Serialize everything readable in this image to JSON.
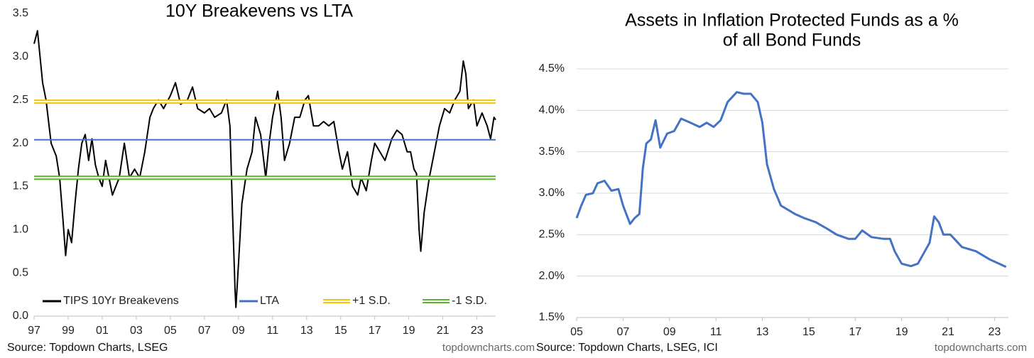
{
  "chart_data": [
    {
      "type": "line",
      "title": "10Y Breakevens vs LTA",
      "xlim": [
        1997,
        2024.1
      ],
      "xticks": [
        {
          "value": 1997,
          "label": "97"
        },
        {
          "value": 1999,
          "label": "99"
        },
        {
          "value": 2001,
          "label": "01"
        },
        {
          "value": 2003,
          "label": "03"
        },
        {
          "value": 2005,
          "label": "05"
        },
        {
          "value": 2007,
          "label": "07"
        },
        {
          "value": 2009,
          "label": "09"
        },
        {
          "value": 2011,
          "label": "11"
        },
        {
          "value": 2013,
          "label": "13"
        },
        {
          "value": 2015,
          "label": "15"
        },
        {
          "value": 2017,
          "label": "17"
        },
        {
          "value": 2019,
          "label": "19"
        },
        {
          "value": 2021,
          "label": "21"
        },
        {
          "value": 2023,
          "label": "23"
        }
      ],
      "ylim": [
        0,
        3.5
      ],
      "yticks": [
        {
          "value": 0,
          "label": "0.0"
        },
        0.5,
        {
          "value": 1,
          "label": "1.0"
        },
        1.5,
        {
          "value": 2,
          "label": "2.0"
        },
        2.5,
        {
          "value": 3,
          "label": "3.0"
        },
        3.5
      ],
      "grid": false,
      "legend": "bottom",
      "series": [
        {
          "name": "TIPS 10Yr Breakevens",
          "color": "#000000",
          "x": [
            1997.0,
            1997.2,
            1997.35,
            1997.5,
            1997.7,
            1998.0,
            1998.3,
            1998.5,
            1998.7,
            1998.85,
            1999.0,
            1999.2,
            1999.4,
            1999.6,
            1999.8,
            2000.0,
            2000.2,
            2000.4,
            2000.6,
            2000.8,
            2001.0,
            2001.2,
            2001.4,
            2001.6,
            2001.8,
            2002.0,
            2002.3,
            2002.6,
            2002.9,
            2003.2,
            2003.5,
            2003.8,
            2004.0,
            2004.3,
            2004.6,
            2005.0,
            2005.3,
            2005.6,
            2006.0,
            2006.3,
            2006.6,
            2007.0,
            2007.3,
            2007.6,
            2008.0,
            2008.3,
            2008.5,
            2008.65,
            2008.8,
            2008.85,
            2009.0,
            2009.2,
            2009.5,
            2009.8,
            2010.0,
            2010.3,
            2010.6,
            2010.8,
            2011.0,
            2011.3,
            2011.5,
            2011.7,
            2012.0,
            2012.3,
            2012.6,
            2012.9,
            2013.1,
            2013.4,
            2013.7,
            2014.0,
            2014.3,
            2014.6,
            2014.9,
            2015.1,
            2015.4,
            2015.7,
            2016.0,
            2016.2,
            2016.5,
            2016.8,
            2017.0,
            2017.3,
            2017.6,
            2018.0,
            2018.3,
            2018.6,
            2018.9,
            2019.1,
            2019.3,
            2019.45,
            2019.6,
            2019.7,
            2019.9,
            2020.2,
            2020.5,
            2020.8,
            2021.1,
            2021.4,
            2021.7,
            2022.0,
            2022.2,
            2022.35,
            2022.5,
            2022.8,
            2023.0,
            2023.3,
            2023.6,
            2023.8,
            2024.0,
            2024.1
          ],
          "values": [
            3.15,
            3.3,
            3.0,
            2.7,
            2.5,
            2.0,
            1.85,
            1.6,
            1.1,
            0.7,
            1.0,
            0.85,
            1.3,
            1.7,
            2.0,
            2.1,
            1.8,
            2.05,
            1.75,
            1.6,
            1.5,
            1.8,
            1.6,
            1.4,
            1.5,
            1.6,
            2.0,
            1.6,
            1.7,
            1.6,
            1.9,
            2.3,
            2.4,
            2.5,
            2.4,
            2.55,
            2.7,
            2.45,
            2.5,
            2.65,
            2.4,
            2.35,
            2.4,
            2.3,
            2.35,
            2.5,
            2.2,
            1.2,
            0.3,
            0.1,
            0.6,
            1.3,
            1.7,
            1.9,
            2.3,
            2.1,
            1.6,
            2.0,
            2.3,
            2.6,
            2.3,
            1.8,
            2.0,
            2.3,
            2.3,
            2.5,
            2.55,
            2.2,
            2.2,
            2.25,
            2.2,
            2.25,
            1.9,
            1.7,
            1.9,
            1.5,
            1.4,
            1.6,
            1.45,
            1.8,
            2.0,
            1.9,
            1.8,
            2.05,
            2.15,
            2.1,
            1.9,
            1.9,
            1.7,
            1.65,
            1.0,
            0.75,
            1.2,
            1.6,
            1.9,
            2.2,
            2.4,
            2.35,
            2.5,
            2.6,
            2.95,
            2.8,
            2.4,
            2.5,
            2.2,
            2.35,
            2.2,
            2.05,
            2.3,
            2.27
          ]
        },
        {
          "name": "LTA",
          "color": "#4472c4",
          "x": [
            1997,
            2024.1
          ],
          "values": [
            2.04,
            2.04
          ]
        },
        {
          "name": "+1 S.D.",
          "color": "#f5c400",
          "line_style": "double",
          "x": [
            1997,
            2024.1
          ],
          "values": [
            2.48,
            2.48
          ]
        },
        {
          "name": "-1 S.D.",
          "color": "#5fb030",
          "line_style": "double",
          "x": [
            1997,
            2024.1
          ],
          "values": [
            1.6,
            1.6
          ]
        }
      ],
      "source": "Source: Topdown Charts, LSEG",
      "watermark": "topdowncharts.com"
    },
    {
      "type": "line",
      "title": [
        "Assets in Inflation Protected Funds as a %",
        "of all Bond Funds"
      ],
      "xlim": [
        2005,
        2023.6
      ],
      "xticks": [
        {
          "value": 2005,
          "label": "05"
        },
        {
          "value": 2007,
          "label": "07"
        },
        {
          "value": 2009,
          "label": "09"
        },
        {
          "value": 2011,
          "label": "11"
        },
        {
          "value": 2013,
          "label": "13"
        },
        {
          "value": 2015,
          "label": "15"
        },
        {
          "value": 2017,
          "label": "17"
        },
        {
          "value": 2019,
          "label": "19"
        },
        {
          "value": 2021,
          "label": "21"
        },
        {
          "value": 2023,
          "label": "23"
        }
      ],
      "ylim": [
        1.5,
        4.5
      ],
      "yticks": [
        {
          "value": 1.5,
          "label": "1.5%"
        },
        {
          "value": 2,
          "label": "2.0%"
        },
        {
          "value": 2.5,
          "label": "2.5%"
        },
        {
          "value": 3,
          "label": "3.0%"
        },
        {
          "value": 3.5,
          "label": "3.5%"
        },
        {
          "value": 4,
          "label": "4.0%"
        },
        {
          "value": 4.5,
          "label": "4.5%"
        }
      ],
      "grid": true,
      "series": [
        {
          "color": "#4472c4",
          "x": [
            2005.0,
            2005.2,
            2005.4,
            2005.7,
            2005.9,
            2006.2,
            2006.5,
            2006.8,
            2007.0,
            2007.3,
            2007.5,
            2007.7,
            2007.85,
            2008.0,
            2008.2,
            2008.4,
            2008.6,
            2008.9,
            2009.2,
            2009.5,
            2009.9,
            2010.3,
            2010.6,
            2010.9,
            2011.2,
            2011.5,
            2011.9,
            2012.2,
            2012.5,
            2012.8,
            2013.0,
            2013.2,
            2013.5,
            2013.8,
            2014.1,
            2014.4,
            2014.8,
            2015.3,
            2015.8,
            2016.2,
            2016.7,
            2017.0,
            2017.3,
            2017.7,
            2018.2,
            2018.5,
            2018.7,
            2019.0,
            2019.4,
            2019.7,
            2020.0,
            2020.2,
            2020.4,
            2020.6,
            2020.8,
            2021.1,
            2021.6,
            2022.2,
            2022.8,
            2023.5
          ],
          "values": [
            2.7,
            2.85,
            2.98,
            3.0,
            3.12,
            3.15,
            3.03,
            3.05,
            2.85,
            2.63,
            2.7,
            2.75,
            3.3,
            3.6,
            3.65,
            3.88,
            3.55,
            3.72,
            3.75,
            3.9,
            3.85,
            3.8,
            3.85,
            3.8,
            3.88,
            4.1,
            4.22,
            4.2,
            4.2,
            4.1,
            3.85,
            3.35,
            3.05,
            2.85,
            2.8,
            2.75,
            2.7,
            2.65,
            2.57,
            2.5,
            2.45,
            2.45,
            2.55,
            2.47,
            2.45,
            2.45,
            2.3,
            2.15,
            2.12,
            2.15,
            2.3,
            2.4,
            2.72,
            2.65,
            2.5,
            2.5,
            2.35,
            2.3,
            2.2,
            2.11
          ]
        }
      ],
      "source": "Source: Topdown Charts, LSEG, ICI",
      "watermark": "topdowncharts.com"
    }
  ]
}
